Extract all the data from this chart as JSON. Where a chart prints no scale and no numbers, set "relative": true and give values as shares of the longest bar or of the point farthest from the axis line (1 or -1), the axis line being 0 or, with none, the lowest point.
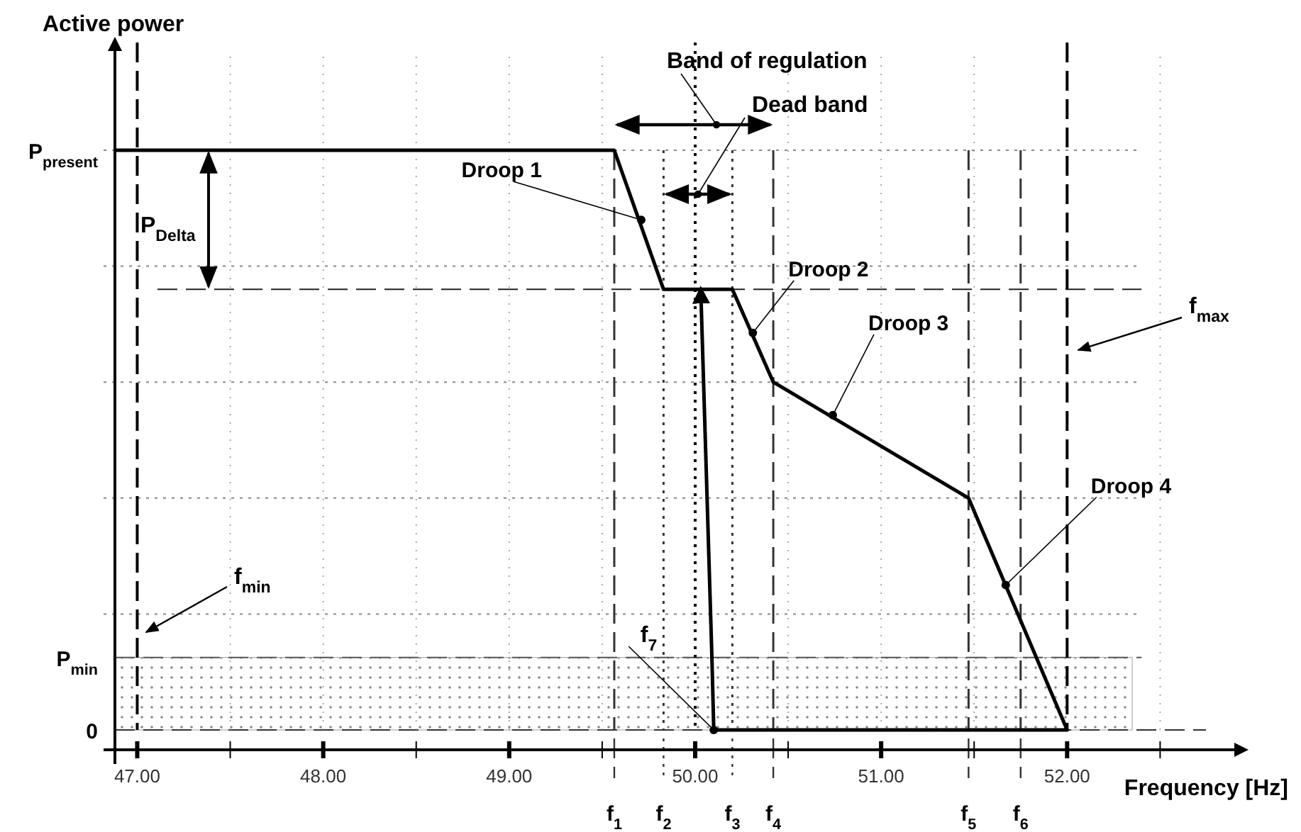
{
  "chart_data": {
    "type": "line",
    "relative": true,
    "xlabel": "Frequency [Hz]",
    "xlim": [
      46.88,
      52.96
    ],
    "xticks": [
      {
        "value": 47,
        "label": "47.00"
      },
      {
        "value": 47.5,
        "label": null
      },
      {
        "value": 48,
        "label": "48.00"
      },
      {
        "value": 48.5,
        "label": null
      },
      {
        "value": 49,
        "label": "49.00"
      },
      {
        "value": 49.5,
        "label": null
      },
      {
        "value": 50,
        "label": "50.00"
      },
      {
        "value": 50.5,
        "label": null
      },
      {
        "value": 51,
        "label": "51.00"
      },
      {
        "value": 51.5,
        "label": null
      },
      {
        "value": 52,
        "label": "52.00"
      },
      {
        "value": 52.5,
        "label": null
      }
    ],
    "marker": "none",
    "line_style": "solid",
    "series": [
      {
        "color": "#000000",
        "x": [
          46.88,
          49.565,
          49.83,
          50.2,
          50.42,
          51.47,
          52.0,
          50.1,
          50.09,
          50.03
        ],
        "values": [
          1,
          1,
          0.76,
          0.76,
          0.6,
          0.4,
          0,
          0,
          0.125,
          0.76
        ]
      }
    ],
    "ref_lines": [
      {
        "axis": "y",
        "value": 1,
        "label": "P$_{present}$",
        "color": "#888888",
        "line_style": "dotted"
      },
      {
        "axis": "y",
        "value": 0.8,
        "label": null,
        "color": "#888888",
        "line_style": "dotted"
      },
      {
        "axis": "y",
        "value": 0.6,
        "label": null,
        "color": "#888888",
        "line_style": "dotted"
      },
      {
        "axis": "y",
        "value": 0.4,
        "label": null,
        "color": "#888888",
        "line_style": "dotted"
      },
      {
        "axis": "y",
        "value": 0.2,
        "label": null,
        "color": "#888888",
        "line_style": "dotted"
      },
      {
        "axis": "y",
        "value": 0.76,
        "label": "P$_{Delta}$",
        "color": "#222222",
        "line_style": "dashed"
      },
      {
        "axis": "y",
        "value": 0.125,
        "label": "P$_{min}$",
        "color": "#555555",
        "line_style": "dashed"
      },
      {
        "axis": "y",
        "value": 0,
        "label": "0",
        "color": "#333333",
        "line_style": "dashed"
      },
      {
        "axis": "x",
        "value": 47.5,
        "label": null,
        "color": "#999999",
        "line_style": "dotted"
      },
      {
        "axis": "x",
        "value": 48,
        "label": null,
        "color": "#999999",
        "line_style": "dotted"
      },
      {
        "axis": "x",
        "value": 48.5,
        "label": null,
        "color": "#999999",
        "line_style": "dotted"
      },
      {
        "axis": "x",
        "value": 49,
        "label": null,
        "color": "#999999",
        "line_style": "dotted"
      },
      {
        "axis": "x",
        "value": 49.5,
        "label": null,
        "color": "#999999",
        "line_style": "dotted"
      },
      {
        "axis": "x",
        "value": 50.5,
        "label": null,
        "color": "#999999",
        "line_style": "dotted"
      },
      {
        "axis": "x",
        "value": 51,
        "label": null,
        "color": "#999999",
        "line_style": "dotted"
      },
      {
        "axis": "x",
        "value": 51.5,
        "label": null,
        "color": "#999999",
        "line_style": "dotted"
      },
      {
        "axis": "x",
        "value": 52.5,
        "label": null,
        "color": "#999999",
        "line_style": "dotted"
      },
      {
        "axis": "x",
        "value": 47,
        "label": null,
        "color": "#000000",
        "line_style": "dashed"
      },
      {
        "axis": "x",
        "value": 52,
        "label": null,
        "color": "#000000",
        "line_style": "dashed"
      },
      {
        "axis": "x",
        "value": 50,
        "label": null,
        "color": "#000000",
        "line_style": "dotted"
      },
      {
        "axis": "x",
        "value": 49.565,
        "label": "f$_{1}$",
        "color": "#333333",
        "line_style": "dashed"
      },
      {
        "axis": "x",
        "value": 49.83,
        "label": "f$_{2}$",
        "color": "#333333",
        "line_style": "dotted"
      },
      {
        "axis": "x",
        "value": 50.2,
        "label": "f$_{3}$",
        "color": "#333333",
        "line_style": "dotted"
      },
      {
        "axis": "x",
        "value": 50.42,
        "label": "f$_{4}$",
        "color": "#333333",
        "line_style": "dashed"
      },
      {
        "axis": "x",
        "value": 51.47,
        "label": "f$_{5}$",
        "color": "#333333",
        "line_style": "dashed"
      },
      {
        "axis": "x",
        "value": 51.75,
        "label": "f$_{6}$",
        "color": "#333333",
        "line_style": "dashed"
      }
    ],
    "bands": [
      {
        "axis": "y",
        "from": 0,
        "to": 0.125,
        "color": "#999999"
      }
    ],
    "annotations": [
      {
        "text": "Droop 1",
        "x": 49.71,
        "y": 0.88
      },
      {
        "text": "Droop 2",
        "x": 50.31,
        "y": 0.685
      },
      {
        "text": "Droop 3",
        "x": 50.74,
        "y": 0.543
      },
      {
        "text": "Droop 4",
        "x": 51.67,
        "y": 0.25
      },
      {
        "text": "f$_{7}$",
        "x": 50.1,
        "y": 0
      },
      "Active power",
      "Band of regulation",
      "Dead band",
      "f$_{min}$",
      "f$_{max}$"
    ]
  }
}
